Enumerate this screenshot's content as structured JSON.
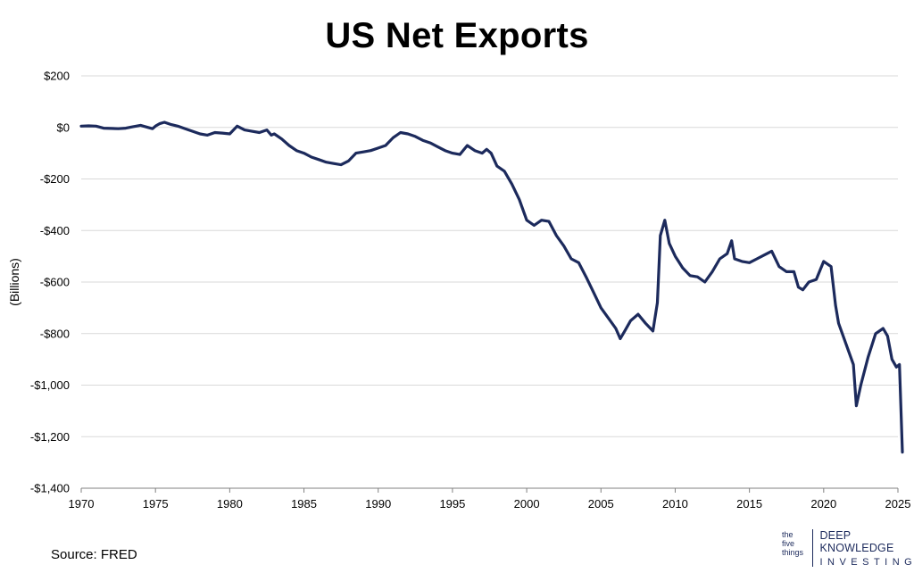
{
  "chart_data": {
    "type": "line",
    "title": "US Net Exports",
    "xlabel": "",
    "ylabel": "(Billions)",
    "xlim": [
      1970,
      2025
    ],
    "ylim": [
      -1400,
      200
    ],
    "x_ticks": [
      1970,
      1975,
      1980,
      1985,
      1990,
      1995,
      2000,
      2005,
      2010,
      2015,
      2020,
      2025
    ],
    "y_ticks": [
      200,
      0,
      -200,
      -400,
      -600,
      -800,
      -1000,
      -1200,
      -1400
    ],
    "y_tick_labels": [
      "$200",
      "$0",
      "-$200",
      "-$400",
      "-$600",
      "-$800",
      "-$1,000",
      "-$1,200",
      "-$1,400"
    ],
    "grid": "horizontal",
    "legend": "none",
    "series": [
      {
        "color": "#1c2a5c",
        "points": [
          [
            1970.0,
            5
          ],
          [
            1970.5,
            6
          ],
          [
            1971.0,
            5
          ],
          [
            1971.5,
            -3
          ],
          [
            1972.0,
            -4
          ],
          [
            1972.5,
            -5
          ],
          [
            1973.0,
            -3
          ],
          [
            1973.5,
            3
          ],
          [
            1974.0,
            8
          ],
          [
            1974.5,
            0
          ],
          [
            1974.8,
            -5
          ],
          [
            1975.0,
            5
          ],
          [
            1975.3,
            15
          ],
          [
            1975.6,
            20
          ],
          [
            1976.0,
            12
          ],
          [
            1976.5,
            5
          ],
          [
            1977.0,
            -5
          ],
          [
            1977.5,
            -15
          ],
          [
            1978.0,
            -25
          ],
          [
            1978.5,
            -30
          ],
          [
            1979.0,
            -20
          ],
          [
            1979.5,
            -22
          ],
          [
            1980.0,
            -25
          ],
          [
            1980.5,
            5
          ],
          [
            1981.0,
            -10
          ],
          [
            1981.5,
            -15
          ],
          [
            1982.0,
            -20
          ],
          [
            1982.5,
            -10
          ],
          [
            1982.8,
            -30
          ],
          [
            1983.0,
            -25
          ],
          [
            1983.5,
            -45
          ],
          [
            1984.0,
            -70
          ],
          [
            1984.5,
            -90
          ],
          [
            1985.0,
            -100
          ],
          [
            1985.5,
            -115
          ],
          [
            1986.0,
            -125
          ],
          [
            1986.5,
            -135
          ],
          [
            1987.0,
            -140
          ],
          [
            1987.5,
            -145
          ],
          [
            1988.0,
            -130
          ],
          [
            1988.5,
            -100
          ],
          [
            1989.0,
            -95
          ],
          [
            1989.5,
            -90
          ],
          [
            1990.0,
            -80
          ],
          [
            1990.5,
            -70
          ],
          [
            1991.0,
            -40
          ],
          [
            1991.5,
            -20
          ],
          [
            1992.0,
            -25
          ],
          [
            1992.5,
            -35
          ],
          [
            1993.0,
            -50
          ],
          [
            1993.5,
            -60
          ],
          [
            1994.0,
            -75
          ],
          [
            1994.5,
            -90
          ],
          [
            1995.0,
            -100
          ],
          [
            1995.5,
            -105
          ],
          [
            1996.0,
            -70
          ],
          [
            1996.5,
            -90
          ],
          [
            1997.0,
            -100
          ],
          [
            1997.3,
            -85
          ],
          [
            1997.6,
            -100
          ],
          [
            1998.0,
            -150
          ],
          [
            1998.5,
            -170
          ],
          [
            1999.0,
            -220
          ],
          [
            1999.5,
            -280
          ],
          [
            2000.0,
            -360
          ],
          [
            2000.5,
            -380
          ],
          [
            2001.0,
            -360
          ],
          [
            2001.5,
            -365
          ],
          [
            2002.0,
            -420
          ],
          [
            2002.5,
            -460
          ],
          [
            2003.0,
            -510
          ],
          [
            2003.5,
            -525
          ],
          [
            2004.0,
            -580
          ],
          [
            2004.5,
            -640
          ],
          [
            2005.0,
            -700
          ],
          [
            2005.5,
            -740
          ],
          [
            2006.0,
            -780
          ],
          [
            2006.3,
            -820
          ],
          [
            2006.6,
            -790
          ],
          [
            2007.0,
            -750
          ],
          [
            2007.5,
            -725
          ],
          [
            2008.0,
            -760
          ],
          [
            2008.5,
            -790
          ],
          [
            2008.8,
            -680
          ],
          [
            2009.0,
            -420
          ],
          [
            2009.3,
            -360
          ],
          [
            2009.6,
            -450
          ],
          [
            2010.0,
            -500
          ],
          [
            2010.5,
            -545
          ],
          [
            2011.0,
            -575
          ],
          [
            2011.5,
            -580
          ],
          [
            2012.0,
            -600
          ],
          [
            2012.5,
            -560
          ],
          [
            2013.0,
            -510
          ],
          [
            2013.5,
            -490
          ],
          [
            2013.8,
            -440
          ],
          [
            2014.0,
            -510
          ],
          [
            2014.5,
            -520
          ],
          [
            2015.0,
            -525
          ],
          [
            2015.5,
            -510
          ],
          [
            2016.0,
            -495
          ],
          [
            2016.5,
            -480
          ],
          [
            2017.0,
            -540
          ],
          [
            2017.5,
            -560
          ],
          [
            2018.0,
            -560
          ],
          [
            2018.3,
            -620
          ],
          [
            2018.6,
            -630
          ],
          [
            2019.0,
            -600
          ],
          [
            2019.5,
            -590
          ],
          [
            2020.0,
            -520
          ],
          [
            2020.5,
            -540
          ],
          [
            2020.8,
            -690
          ],
          [
            2021.0,
            -760
          ],
          [
            2021.5,
            -840
          ],
          [
            2022.0,
            -920
          ],
          [
            2022.2,
            -1080
          ],
          [
            2022.5,
            -1000
          ],
          [
            2023.0,
            -890
          ],
          [
            2023.5,
            -800
          ],
          [
            2024.0,
            -780
          ],
          [
            2024.3,
            -810
          ],
          [
            2024.6,
            -900
          ],
          [
            2024.9,
            -930
          ],
          [
            2025.1,
            -920
          ],
          [
            2025.3,
            -1260
          ]
        ]
      }
    ]
  },
  "source": "Source: FRED",
  "logo": {
    "mark_line1": "the",
    "mark_line2": "five",
    "mark_line3": "things",
    "line1": "DEEP KNOWLEDGE",
    "line2": "INVESTING",
    "color": "#1c2a5c"
  }
}
